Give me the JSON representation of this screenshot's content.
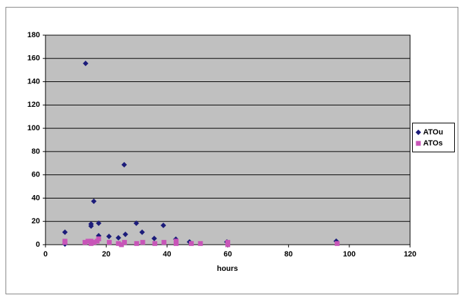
{
  "chart_data": {
    "type": "scatter",
    "x_label": "hours",
    "xlim": [
      0,
      120
    ],
    "xticks": [
      0,
      20,
      40,
      60,
      80,
      100,
      120
    ],
    "ylim": [
      0,
      180
    ],
    "yticks": [
      0,
      20,
      40,
      60,
      80,
      100,
      120,
      140,
      160,
      180
    ],
    "grid": true,
    "legend": "right",
    "series": [
      {
        "name": "ATOu",
        "color": "#1c1c7a",
        "marker": "diamond",
        "x": [
          6.4,
          6.4,
          13.2,
          15,
          15,
          15.9,
          17.5,
          17.5,
          20.9,
          24,
          25.9,
          26.3,
          29.9,
          31.8,
          35.8,
          38.8,
          42.9,
          47.4,
          59.7,
          95.7
        ],
        "values": [
          10.7,
          0.5,
          155.7,
          17.8,
          16,
          37.3,
          18.4,
          7.7,
          7.1,
          5.9,
          68.7,
          8.9,
          18.4,
          10.7,
          5.3,
          16.6,
          4.7,
          2.4,
          2.4,
          3
        ]
      },
      {
        "name": "ATOs",
        "color": "#c855b8",
        "marker": "square",
        "x": [
          6.4,
          6.4,
          13,
          14,
          15,
          15,
          16,
          17,
          17.5,
          21,
          24,
          25,
          26,
          30,
          32,
          36,
          39,
          43,
          43,
          48,
          51,
          60,
          60,
          96
        ],
        "values": [
          3,
          2,
          2,
          3,
          1,
          3,
          2,
          3,
          5,
          2,
          1,
          0,
          2,
          1,
          2,
          1,
          2,
          3,
          1,
          1,
          1,
          2,
          0,
          1
        ]
      }
    ]
  }
}
